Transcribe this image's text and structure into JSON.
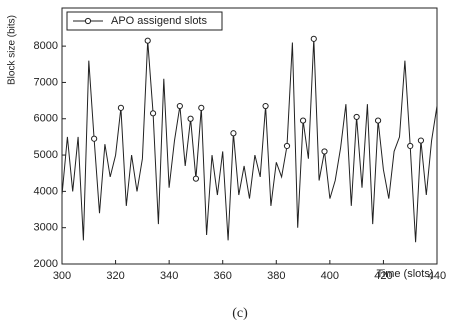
{
  "chart_data": {
    "type": "line",
    "x_label": "Time (slots)",
    "y_label": "Block size (bits)",
    "caption": "(c)",
    "xlim": [
      300,
      440
    ],
    "xticks": [
      300,
      320,
      340,
      360,
      380,
      400,
      420,
      440
    ],
    "ylim": [
      2000,
      9050
    ],
    "yticks": [
      2000,
      3000,
      4000,
      5000,
      6000,
      7000,
      8000
    ],
    "legend": "upper left",
    "series": [
      {
        "color": "#222222",
        "x": [
          300,
          302,
          304,
          306,
          308,
          310,
          312,
          314,
          316,
          318,
          320,
          322,
          324,
          326,
          328,
          330,
          332,
          334,
          336,
          338,
          340,
          342,
          344,
          346,
          348,
          350,
          352,
          354,
          356,
          358,
          360,
          362,
          364,
          366,
          368,
          370,
          372,
          374,
          376,
          378,
          380,
          382,
          384,
          386,
          388,
          390,
          392,
          394,
          396,
          398,
          400,
          402,
          404,
          406,
          408,
          410,
          412,
          414,
          416,
          418,
          420,
          422,
          424,
          426,
          428,
          430,
          432,
          434,
          436,
          438,
          440
        ],
        "values": [
          3900,
          5500,
          4000,
          5500,
          2650,
          7600,
          5450,
          3400,
          5300,
          4400,
          5000,
          6300,
          3600,
          5000,
          4000,
          4900,
          8150,
          6150,
          3100,
          7100,
          4100,
          5400,
          6350,
          4700,
          6000,
          4350,
          6300,
          2800,
          5000,
          3900,
          5100,
          2650,
          5600,
          3900,
          4700,
          3800,
          5000,
          4400,
          6350,
          3600,
          4800,
          4400,
          5250,
          8100,
          3000,
          5950,
          4900,
          8200,
          4300,
          5100,
          3800,
          4300,
          5200,
          6400,
          3600,
          6050,
          4100,
          6400,
          3100,
          5950,
          4600,
          3800,
          5100,
          5500,
          7600,
          5250,
          2600,
          5400,
          3900,
          5400,
          6350
        ]
      },
      {
        "name": "APO assigend slots",
        "color": "#222222",
        "x": [
          312,
          322,
          332,
          334,
          344,
          348,
          350,
          352,
          364,
          376,
          384,
          390,
          394,
          398,
          410,
          418,
          430,
          434
        ],
        "values": [
          5450,
          6300,
          8150,
          6150,
          6350,
          6000,
          4350,
          6300,
          5600,
          6350,
          5250,
          5950,
          8200,
          5100,
          6050,
          5950,
          5250,
          5400
        ]
      }
    ]
  }
}
